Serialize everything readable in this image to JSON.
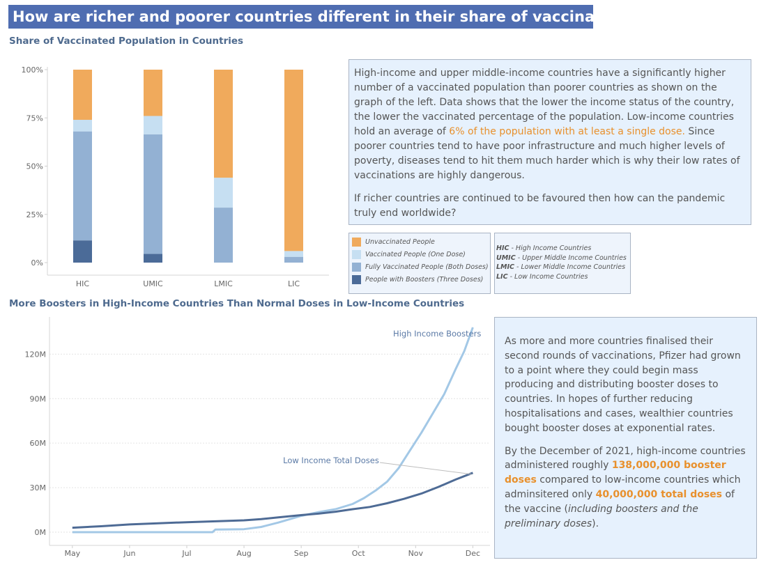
{
  "page": {
    "title": "How are richer and poorer countries different in their share of vaccinated people?"
  },
  "colors": {
    "unvaccinated": "#f0aa5c",
    "one_dose": "#c6dff2",
    "fully": "#93b1d3",
    "boosters": "#4b6b98",
    "high_income_line": "#a3c8e6",
    "low_income_line": "#4e6b95",
    "highlight": "#e8902c",
    "title_bg": "#4f6db1"
  },
  "chart_data": [
    {
      "type": "bar",
      "stacked": true,
      "title": "Share of Vaccinated Population in Countries",
      "categories": [
        "HIC",
        "UMIC",
        "LMIC",
        "LIC"
      ],
      "ylim": [
        0,
        100
      ],
      "yticks": [
        0,
        25,
        50,
        75,
        100
      ],
      "ytick_labels": [
        "0%",
        "25%",
        "50%",
        "75%",
        "100%"
      ],
      "series": [
        {
          "name": "People with Boosters (Three Doses)",
          "values": [
            11.5,
            4.5,
            0,
            0
          ]
        },
        {
          "name": "Fully Vaccinated People (Both Doses)",
          "values": [
            56.5,
            62,
            28.5,
            3
          ]
        },
        {
          "name": "Vaccinated People (One Dose)",
          "values": [
            6,
            9.5,
            15.5,
            3
          ]
        },
        {
          "name": "Unvaccinated People",
          "values": [
            26,
            24,
            56,
            94
          ]
        }
      ],
      "legend_order": [
        "Unvaccinated People",
        "Vaccinated People (One Dose)",
        "Fully Vaccinated People (Both Doses)",
        "People with Boosters (Three Doses)"
      ]
    },
    {
      "type": "line",
      "title": "More Boosters in High-Income Countries Than Normal Doses in Low-Income Countries",
      "x_labels": [
        "May",
        "Jun",
        "Jul",
        "Aug",
        "Sep",
        "Oct",
        "Nov",
        "Dec"
      ],
      "x_months": [
        5,
        6,
        7,
        8,
        9,
        10,
        11,
        12
      ],
      "ylim": [
        0,
        138000000
      ],
      "yticks": [
        0,
        30000000,
        60000000,
        90000000,
        120000000
      ],
      "ytick_labels": [
        "0M",
        "30M",
        "60M",
        "90M",
        "120M"
      ],
      "grid": true,
      "series": [
        {
          "name": "High Income Boosters",
          "x": [
            5,
            6,
            7,
            7.45,
            7.5,
            8,
            8.3,
            8.6,
            9,
            9.3,
            9.6,
            9.9,
            10.1,
            10.3,
            10.5,
            10.7,
            10.9,
            11.1,
            11.3,
            11.5,
            11.7,
            11.85,
            12
          ],
          "y": [
            0,
            0,
            0,
            0,
            1800000,
            2000000,
            3500000,
            6500000,
            11000000,
            13500000,
            15500000,
            19000000,
            23000000,
            28000000,
            34000000,
            43000000,
            55000000,
            67000000,
            80000000,
            93000000,
            110000000,
            122000000,
            138000000
          ]
        },
        {
          "name": "Low Income Total Doses",
          "x": [
            5,
            5.5,
            6,
            6.5,
            7,
            7.5,
            8,
            8.3,
            8.6,
            9,
            9.3,
            9.6,
            9.9,
            10.2,
            10.5,
            10.8,
            11.1,
            11.4,
            11.7,
            12
          ],
          "y": [
            3000000,
            4000000,
            5200000,
            6000000,
            6700000,
            7300000,
            8000000,
            8800000,
            10000000,
            11500000,
            12500000,
            13800000,
            15500000,
            17000000,
            19500000,
            22500000,
            26000000,
            30500000,
            35500000,
            40000000
          ]
        }
      ],
      "annotations": [
        "High Income Boosters",
        "Low Income Total Doses"
      ]
    }
  ],
  "box1": {
    "p1_a": "High-income and upper middle-income countries have a significantly higher number of a vaccinated population than poorer countries as shown on the graph of the left. Data shows that the lower the income status of the country, the lower the vaccinated percentage of the population. Low-income countries hold an average of ",
    "p1_hl": "6% of the population with at least a single dose.",
    "p1_b": " Since poorer countries tend to have poor infrastructure and much higher levels of poverty, diseases tend to hit them much harder which is why their low rates of vaccinations are highly dangerous.",
    "p2": "If richer countries are continued to be favoured then how can the pandemic truly end worldwide?"
  },
  "abbreviations": [
    {
      "abbr": "HIC",
      "text": " - High Income Countries"
    },
    {
      "abbr": "UMIC",
      "text": " - Upper Middle Income Countries"
    },
    {
      "abbr": "LMIC",
      "text": " - Lower Middle Income Countries"
    },
    {
      "abbr": "LIC",
      "text": " - Low Income Countries"
    }
  ],
  "box2": {
    "p1": "As more and more countries finalised their second rounds of vaccinations, Pfizer had grown to a point where they could begin mass producing and distributing booster doses to countries. In hopes of further reducing hospitalisations and cases, wealthier countries bought booster doses at exponential rates.",
    "p2_a": "By the December of 2021, high-income countries administered roughly ",
    "p2_hl1": "138,000,000 booster doses",
    "p2_b": " compared to low-income countries which adminsitered only ",
    "p2_hl2": "40,000,000 total doses",
    "p2_c": " of the vaccine (",
    "p2_italic": "including boosters and the preliminary doses",
    "p2_d": ")."
  }
}
